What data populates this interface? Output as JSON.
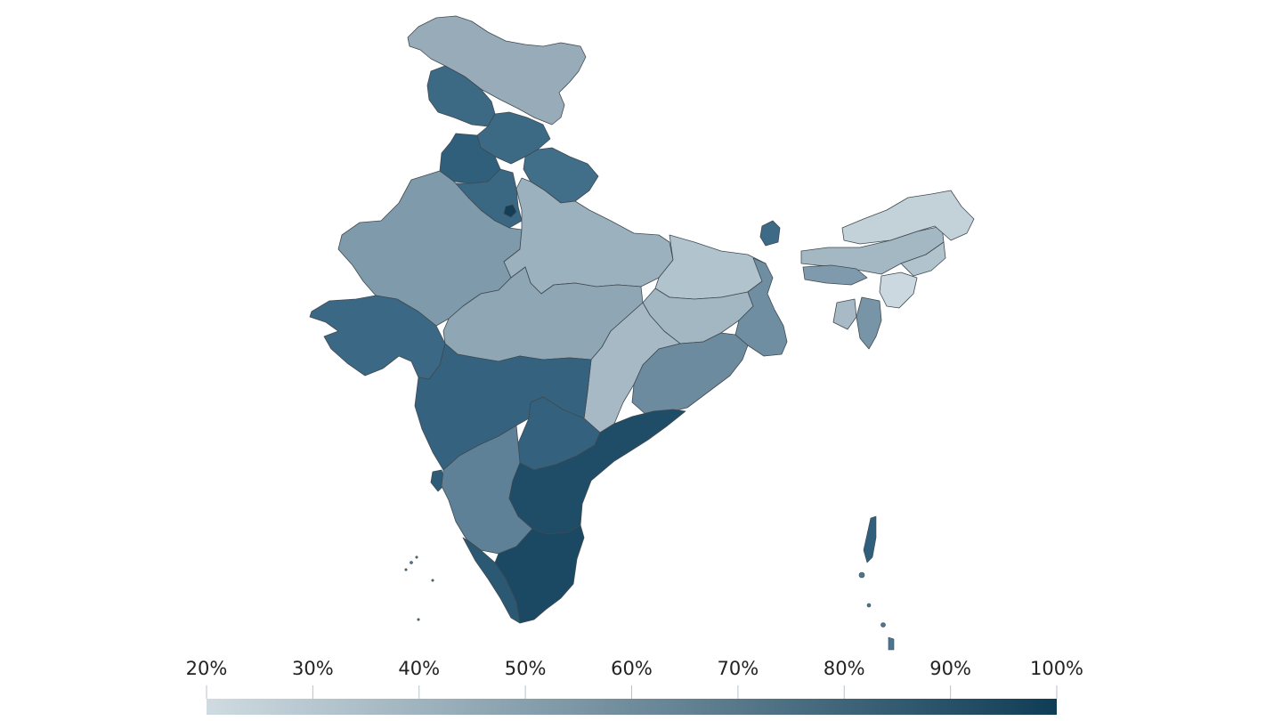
{
  "map": {
    "type": "choropleth",
    "region": "India",
    "colors": {
      "low": "#cfdbe1",
      "high": "#0f3d56",
      "border": "#3f4a52",
      "background": "#ffffff"
    }
  },
  "legend": {
    "ticks": [
      "20%",
      "30%",
      "40%",
      "50%",
      "60%",
      "70%",
      "80%",
      "90%",
      "100%"
    ],
    "gradient_start": "#cfdbe1",
    "gradient_end": "#0f3d56"
  }
}
